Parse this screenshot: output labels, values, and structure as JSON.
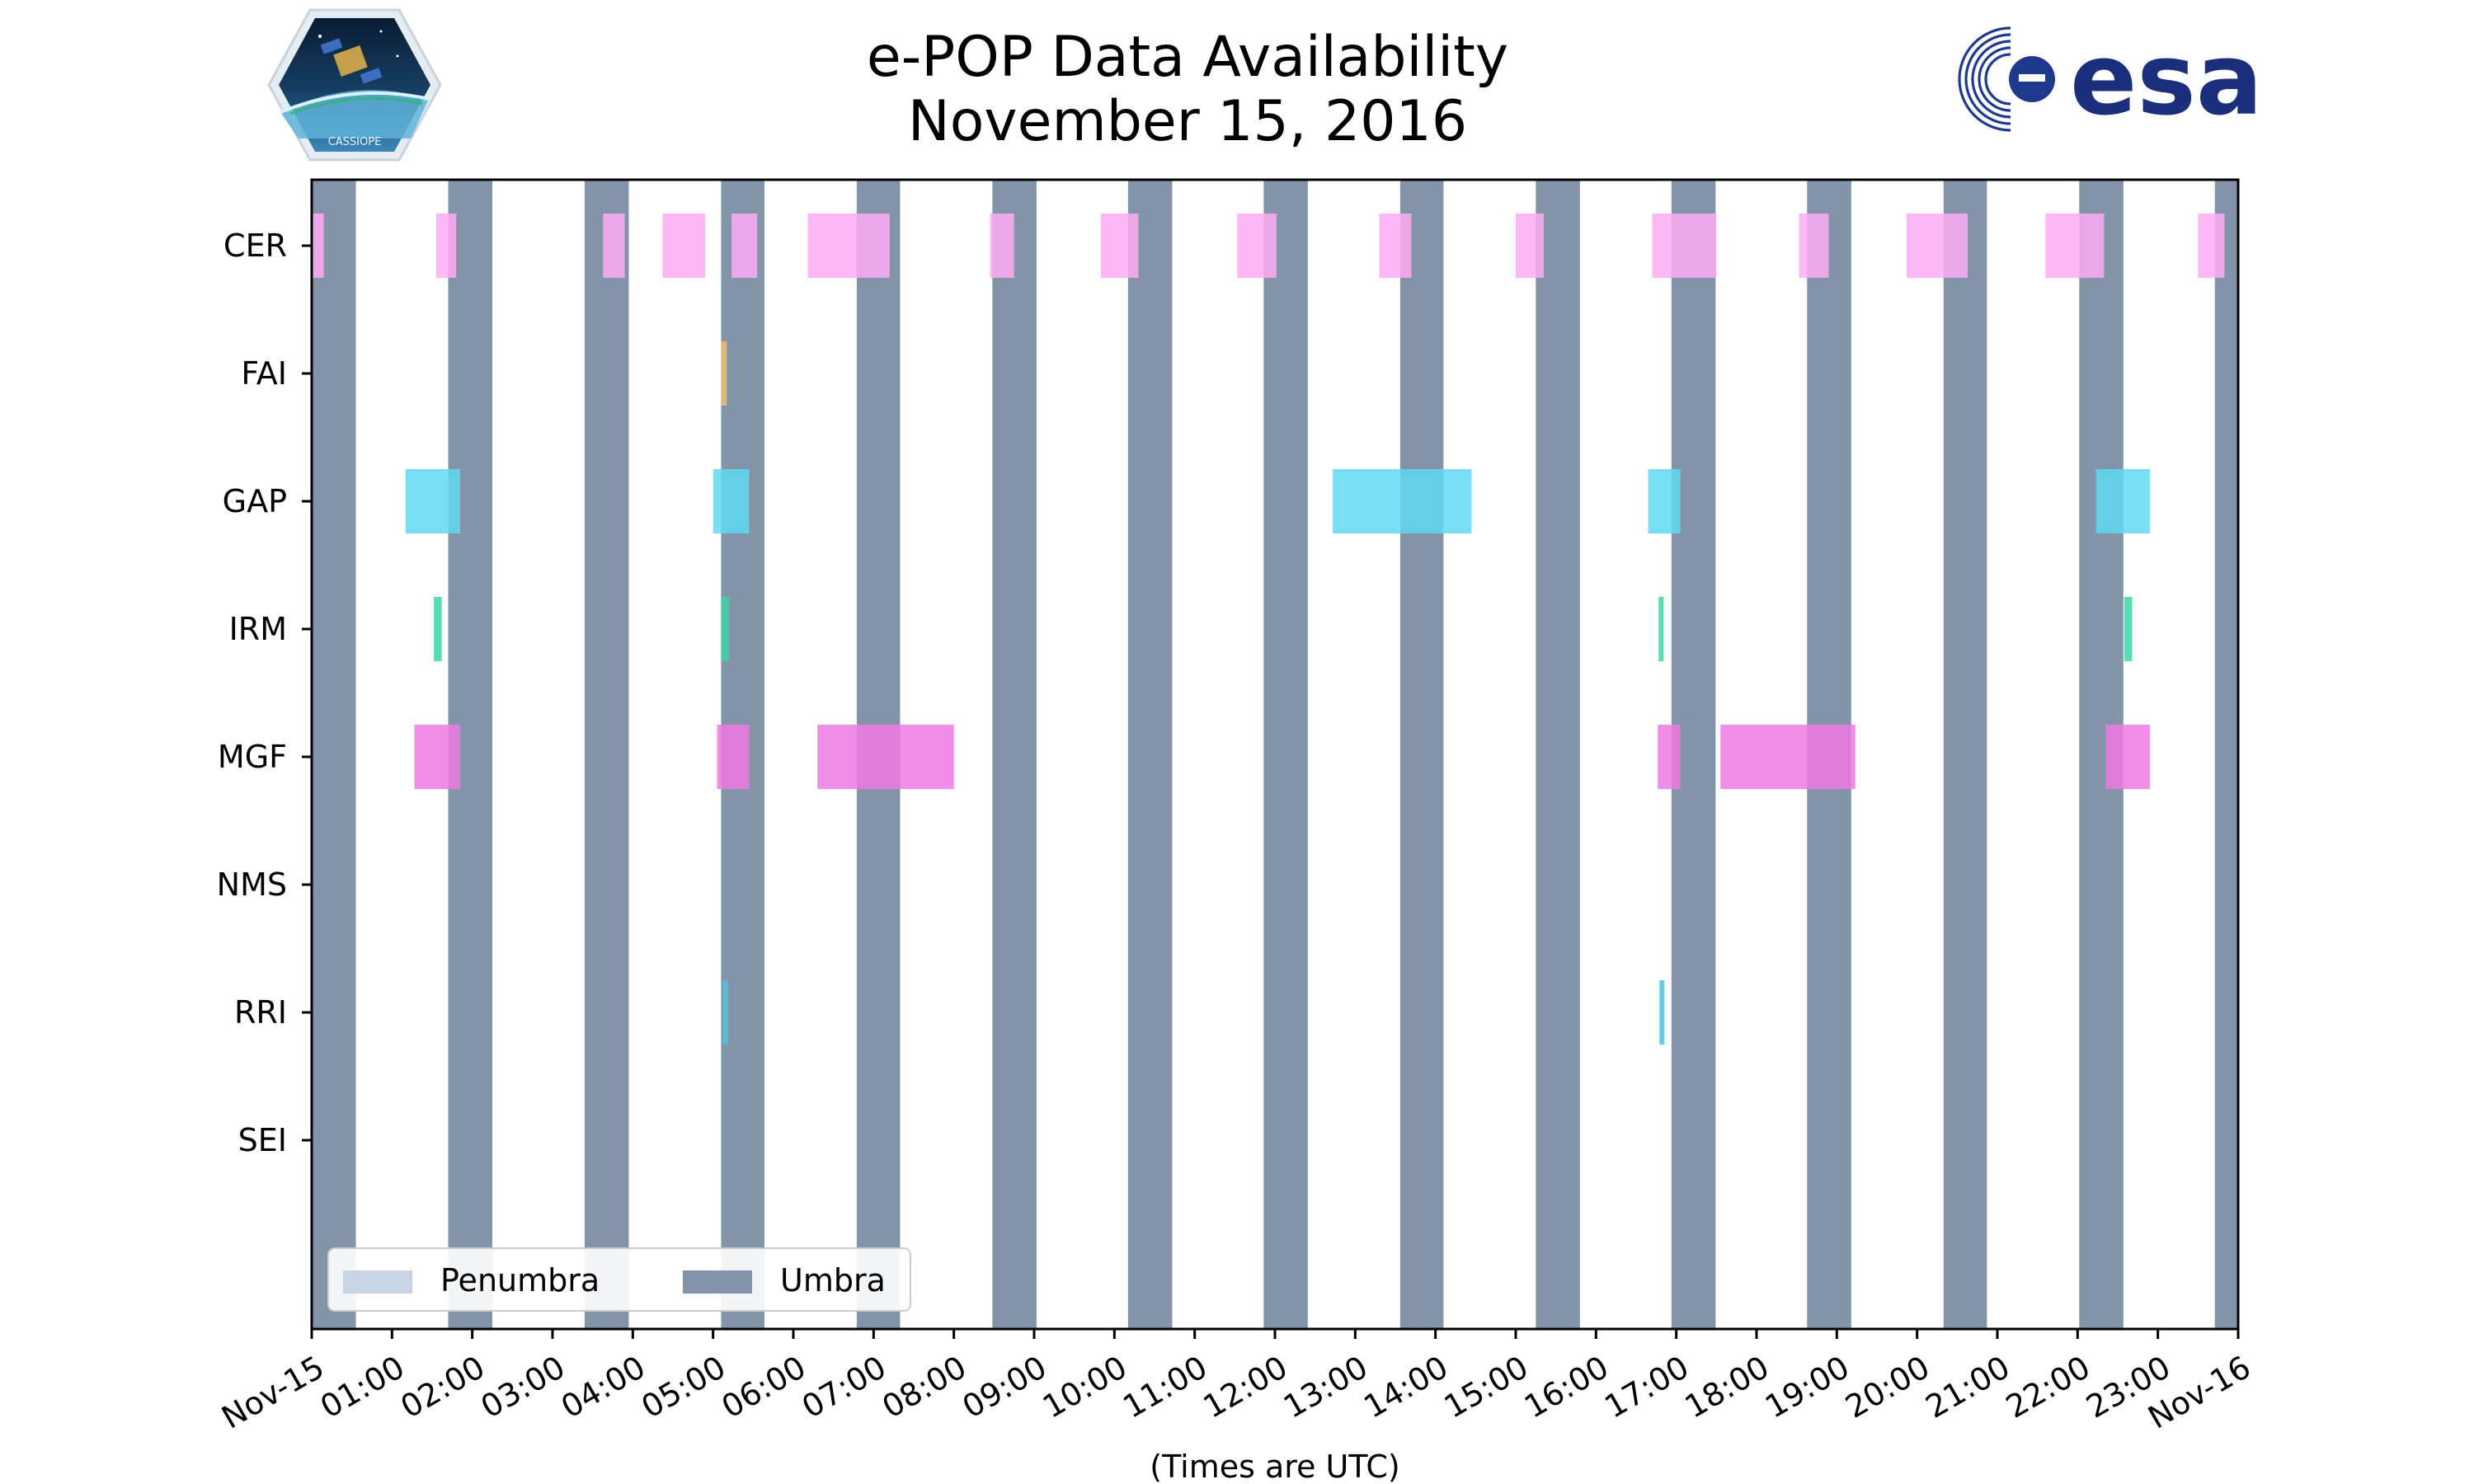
{
  "title": {
    "line1": "e-POP Data Availability",
    "line2": "November 15, 2016"
  },
  "logos": {
    "left": {
      "icon": "cassiope-mission-badge-icon",
      "text": "CASSIOPE"
    },
    "right": {
      "icon": "esa-logo-icon",
      "text": "esa"
    }
  },
  "chart_data": {
    "type": "timeline",
    "title": "e-POP Data Availability November 15, 2016",
    "xlabel": "(Times are UTC)",
    "ylabel": "",
    "x_range_hours": [
      0,
      24
    ],
    "x_ticks": [
      {
        "h": 0,
        "label": "Nov-15"
      },
      {
        "h": 1,
        "label": "01:00"
      },
      {
        "h": 2,
        "label": "02:00"
      },
      {
        "h": 3,
        "label": "03:00"
      },
      {
        "h": 4,
        "label": "04:00"
      },
      {
        "h": 5,
        "label": "05:00"
      },
      {
        "h": 6,
        "label": "06:00"
      },
      {
        "h": 7,
        "label": "07:00"
      },
      {
        "h": 8,
        "label": "08:00"
      },
      {
        "h": 9,
        "label": "09:00"
      },
      {
        "h": 10,
        "label": "10:00"
      },
      {
        "h": 11,
        "label": "11:00"
      },
      {
        "h": 12,
        "label": "12:00"
      },
      {
        "h": 13,
        "label": "13:00"
      },
      {
        "h": 14,
        "label": "14:00"
      },
      {
        "h": 15,
        "label": "15:00"
      },
      {
        "h": 16,
        "label": "16:00"
      },
      {
        "h": 17,
        "label": "17:00"
      },
      {
        "h": 18,
        "label": "18:00"
      },
      {
        "h": 19,
        "label": "19:00"
      },
      {
        "h": 20,
        "label": "20:00"
      },
      {
        "h": 21,
        "label": "21:00"
      },
      {
        "h": 22,
        "label": "22:00"
      },
      {
        "h": 23,
        "label": "23:00"
      },
      {
        "h": 24,
        "label": "Nov-16"
      }
    ],
    "instruments": [
      "CER",
      "FAI",
      "GAP",
      "IRM",
      "MGF",
      "NMS",
      "RRI",
      "SEI"
    ],
    "umbra": [
      [
        0.0,
        0.55
      ],
      [
        1.7,
        2.25
      ],
      [
        3.4,
        3.95
      ],
      [
        5.1,
        5.64
      ],
      [
        6.79,
        7.33
      ],
      [
        8.48,
        9.03
      ],
      [
        10.17,
        10.72
      ],
      [
        11.86,
        12.41
      ],
      [
        13.56,
        14.1
      ],
      [
        15.25,
        15.8
      ],
      [
        16.94,
        17.49
      ],
      [
        18.63,
        19.18
      ],
      [
        20.33,
        20.87
      ],
      [
        22.02,
        22.57
      ],
      [
        23.71,
        24.0
      ]
    ],
    "penumbra": [],
    "legend": {
      "location": "lower-left",
      "entries": [
        {
          "label": "Penumbra",
          "color": "#c8d4e3"
        },
        {
          "label": "Umbra",
          "color": "#8494a8"
        }
      ]
    },
    "colors": {
      "umbra": "#8494a8",
      "CER": "#fcabf3",
      "FAI": "#ebbd73",
      "GAP": "#60d9f3",
      "IRM": "#40d3a6",
      "MGF": "#ed79e3",
      "NMS": "#999999",
      "RRI": "#4dc2e3",
      "SEI": "#999999"
    },
    "segments": {
      "CER": [
        [
          0.0,
          0.15
        ],
        [
          1.55,
          1.8
        ],
        [
          3.63,
          3.9
        ],
        [
          4.37,
          4.9
        ],
        [
          5.23,
          5.55
        ],
        [
          6.18,
          7.2
        ],
        [
          8.45,
          8.75
        ],
        [
          9.83,
          10.3
        ],
        [
          11.53,
          12.02
        ],
        [
          13.3,
          13.7
        ],
        [
          15.0,
          15.35
        ],
        [
          16.7,
          17.5
        ],
        [
          18.53,
          18.9
        ],
        [
          19.87,
          20.63
        ],
        [
          21.6,
          22.33
        ],
        [
          23.5,
          23.83
        ]
      ],
      "FAI": [
        [
          5.1,
          5.17
        ]
      ],
      "GAP": [
        [
          1.17,
          1.85
        ],
        [
          5.0,
          5.45
        ],
        [
          12.72,
          14.45
        ],
        [
          16.65,
          17.05
        ],
        [
          22.23,
          22.9
        ]
      ],
      "IRM": [
        [
          1.52,
          1.62
        ],
        [
          5.1,
          5.2
        ],
        [
          16.78,
          16.84
        ],
        [
          22.58,
          22.68
        ]
      ],
      "MGF": [
        [
          1.28,
          1.85
        ],
        [
          5.05,
          5.45
        ],
        [
          6.3,
          8.0
        ],
        [
          16.77,
          17.05
        ],
        [
          17.55,
          19.23
        ],
        [
          22.35,
          22.9
        ]
      ],
      "NMS": [],
      "RRI": [
        [
          5.12,
          5.17
        ],
        [
          16.79,
          16.83
        ]
      ],
      "SEI": []
    }
  }
}
